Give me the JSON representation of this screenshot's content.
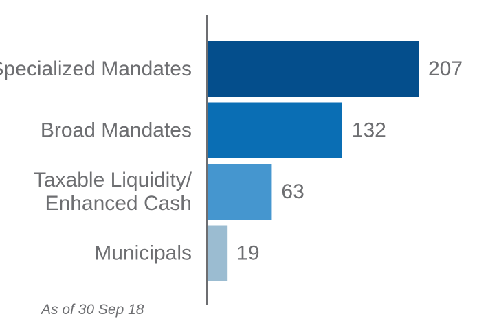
{
  "chart_data": {
    "type": "bar",
    "orientation": "horizontal",
    "categories": [
      [
        "Specialized Mandates"
      ],
      [
        "Broad Mandates"
      ],
      [
        "Taxable Liquidity/",
        "Enhanced Cash"
      ],
      [
        "Municipals"
      ]
    ],
    "values": [
      207,
      132,
      63,
      19
    ],
    "value_labels": [
      "207",
      "132",
      "63",
      "19"
    ],
    "colors": [
      "#044e8c",
      "#0a6eb4",
      "#4596cf",
      "#9bbcd1"
    ],
    "axis_color": "#6d6e71",
    "xlim": [
      0,
      207
    ],
    "grid": false,
    "legend": "none",
    "title": "",
    "xlabel": "",
    "ylabel": ""
  },
  "footnote": "As of 30 Sep 18"
}
